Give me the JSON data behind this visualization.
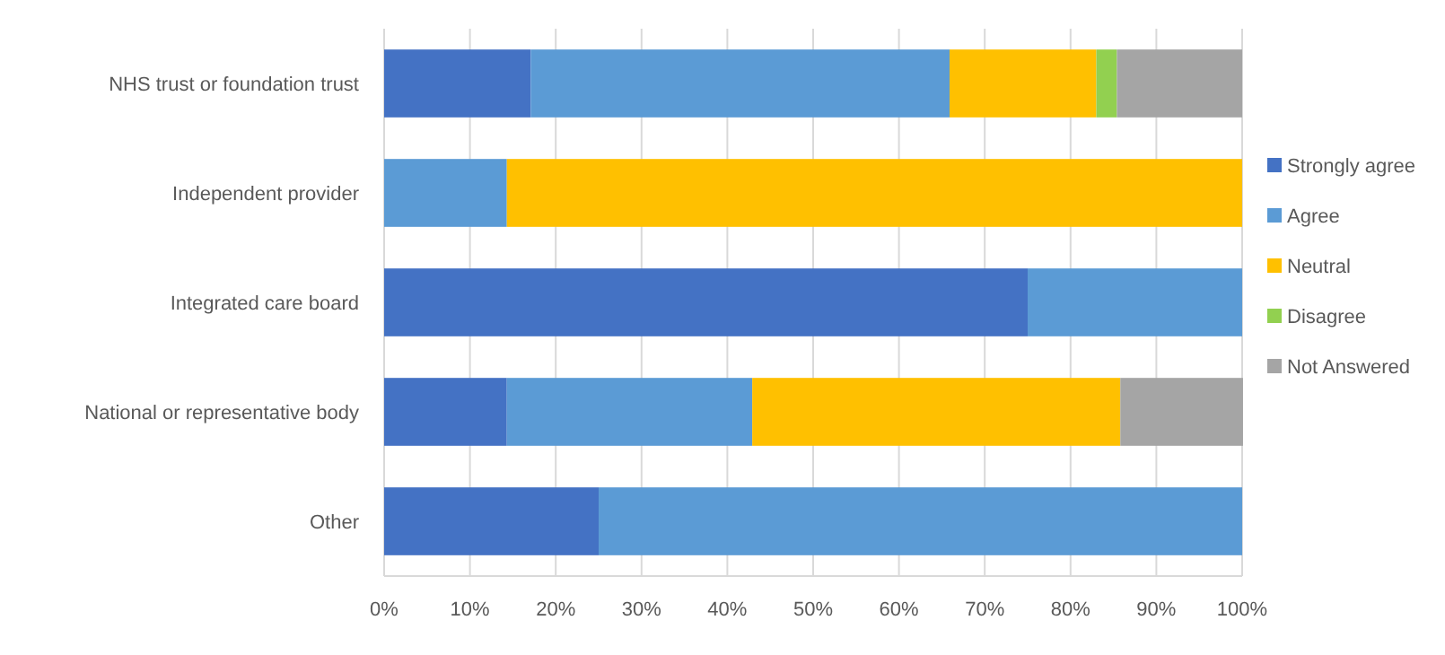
{
  "chart_data": {
    "type": "bar",
    "orientation": "horizontal",
    "stacked": true,
    "categories": [
      "NHS trust or foundation trust",
      "Independent provider",
      "Integrated care board",
      "National or representative body",
      "Other"
    ],
    "series": [
      {
        "name": "Strongly agree",
        "color": "#4472c4",
        "values": [
          17.1,
          0,
          75,
          14.3,
          25
        ]
      },
      {
        "name": "Agree",
        "color": "#5b9bd5",
        "values": [
          48.8,
          14.3,
          25,
          28.6,
          75
        ]
      },
      {
        "name": "Neutral",
        "color": "#ffc000",
        "values": [
          17.1,
          85.7,
          0,
          42.9,
          0
        ]
      },
      {
        "name": "Disagree",
        "color": "#92d050",
        "values": [
          2.4,
          0,
          0,
          0,
          0
        ]
      },
      {
        "name": "Not Answered",
        "color": "#a5a5a5",
        "values": [
          14.6,
          0,
          0,
          14.3,
          0
        ]
      }
    ],
    "xlim": [
      0,
      100
    ],
    "xticks": [
      {
        "value": 0,
        "label": "0%"
      },
      {
        "value": 10,
        "label": "10%"
      },
      {
        "value": 20,
        "label": "20%"
      },
      {
        "value": 30,
        "label": "30%"
      },
      {
        "value": 40,
        "label": "40%"
      },
      {
        "value": 50,
        "label": "50%"
      },
      {
        "value": 60,
        "label": "60%"
      },
      {
        "value": 70,
        "label": "70%"
      },
      {
        "value": 80,
        "label": "80%"
      },
      {
        "value": 90,
        "label": "90%"
      },
      {
        "value": 100,
        "label": "100%"
      }
    ],
    "grid": "x",
    "legend": "right"
  }
}
